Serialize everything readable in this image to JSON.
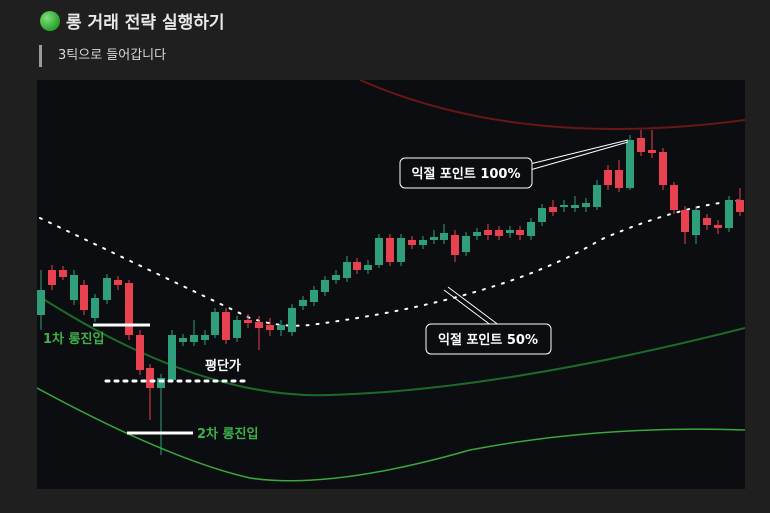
{
  "header": {
    "title": "롱 거래 전략 실행하기",
    "subtitle": "3틱으로 들어갑니다"
  },
  "chart_image": {
    "annotations": {
      "entry_1": "1차 롱진입",
      "average_price": "평단가",
      "entry_2": "2차 롱진입",
      "take_profit_100": "익절 포인트 100%",
      "take_profit_50": "익절 포인트 50%"
    }
  }
}
